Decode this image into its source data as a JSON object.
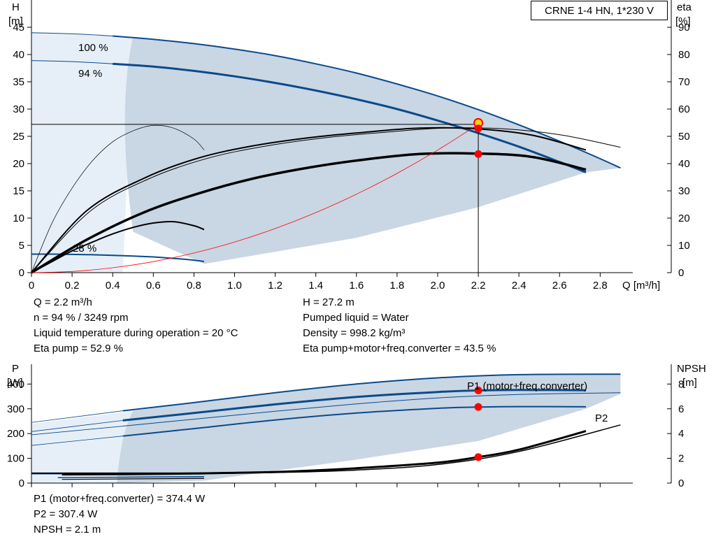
{
  "title": "CRNE 1-4 HN, 1*230 V",
  "colors": {
    "blue": "#0a4a8a",
    "shade": "#c9d6e4",
    "light": "#e6eff8",
    "red": "#ff0000"
  },
  "info_top": {
    "left": [
      "Q = 2.2 m³/h",
      "n = 94 % / 3249 rpm",
      "Liquid temperature during operation = 20 °C",
      "Eta pump = 52.9 %"
    ],
    "right": [
      "H = 27.2 m",
      "Pumped liquid = Water",
      "Density = 998.2 kg/m³",
      "Eta pump+motor+freq.converter = 43.5 %"
    ]
  },
  "info_bottom": [
    "P1 (motor+freq.converter) = 374.4 W",
    "P2 = 307.4 W",
    "NPSH = 2.1 m"
  ],
  "chart_data": [
    {
      "type": "line",
      "title": "CRNE 1-4 HN, 1*230 V",
      "x_label": "Q [m³/h]",
      "y_left_label": [
        "H",
        "[m]"
      ],
      "y_right_label": [
        "eta",
        "[%]"
      ],
      "x_ticks": [
        "0",
        "0.2",
        "0.4",
        "0.6",
        "0.8",
        "1.0",
        "1.2",
        "1.4",
        "1.6",
        "1.8",
        "2.0",
        "2.2",
        "2.4",
        "2.6",
        "2.8"
      ],
      "y_left_ticks": [
        "0",
        "5",
        "10",
        "15",
        "20",
        "25",
        "30",
        "35",
        "40",
        "45"
      ],
      "y_right_ticks": [
        "0",
        "10",
        "20",
        "30",
        "40",
        "50",
        "60",
        "70",
        "80",
        "90"
      ],
      "xlim": [
        0,
        3.15
      ],
      "ylim_left": [
        0,
        50
      ],
      "ylim_right": [
        0,
        100
      ],
      "annotations": [
        "100 %",
        "94 %",
        "28 %"
      ],
      "duty_point": {
        "Q": 2.2,
        "H": 27.2,
        "eta": 52.9,
        "eta_total": 43.5
      },
      "series": [
        {
          "name": "100 %",
          "role": "H",
          "speed": 1.0,
          "x": [
            0,
            0.2,
            0.4,
            0.6,
            0.8,
            1.0,
            1.2,
            1.4,
            1.6,
            1.8,
            2.0,
            2.2,
            2.4,
            2.6,
            2.8,
            2.9
          ],
          "y": [
            44,
            43.8,
            43.4,
            42.8,
            42,
            41,
            39.8,
            38.3,
            36.6,
            34.6,
            32.4,
            29.9,
            27.1,
            24.1,
            20.9,
            19.2
          ]
        },
        {
          "name": "94 %",
          "role": "H",
          "speed": 0.94,
          "x": [
            0,
            0.2,
            0.4,
            0.6,
            0.8,
            1.0,
            1.2,
            1.4,
            1.6,
            1.8,
            2.0,
            2.2,
            2.4,
            2.6,
            2.73
          ],
          "y": [
            38.9,
            38.7,
            38.3,
            37.8,
            37,
            36,
            34.8,
            33.4,
            31.8,
            30,
            27.9,
            25.6,
            23.1,
            20.3,
            18.4
          ]
        },
        {
          "name": "28 %",
          "role": "H",
          "speed": 0.28,
          "x": [
            0,
            0.1,
            0.2,
            0.3,
            0.4,
            0.5,
            0.6,
            0.7,
            0.8,
            0.85
          ],
          "y": [
            3.4,
            3.4,
            3.35,
            3.28,
            3.18,
            3.05,
            2.88,
            2.62,
            2.28,
            2.05
          ]
        },
        {
          "name": "system curve",
          "role": "system",
          "x": [
            0,
            0.2,
            0.4,
            0.6,
            0.8,
            1.0,
            1.2,
            1.4,
            1.6,
            1.8,
            2.0,
            2.2
          ],
          "y": [
            0,
            0.22,
            0.9,
            2.02,
            3.6,
            5.62,
            8.09,
            11.01,
            14.38,
            18.2,
            22.48,
            27.2
          ]
        },
        {
          "name": "eta 100 %",
          "role": "eta",
          "x": [
            0,
            0.29,
            0.58,
            0.87,
            1.16,
            1.45,
            1.74,
            2.03,
            2.32,
            2.61,
            2.9
          ],
          "y": [
            0,
            22.6,
            34.5,
            42,
            46.5,
            49.5,
            51.5,
            53,
            52.8,
            50.5,
            46
          ]
        },
        {
          "name": "eta 94 %",
          "role": "eta",
          "x": [
            0,
            0.27,
            0.55,
            0.82,
            1.09,
            1.37,
            1.64,
            1.91,
            2.18,
            2.46,
            2.73
          ],
          "y": [
            0,
            22.6,
            34.5,
            42,
            46.5,
            49.5,
            51.5,
            53,
            52.8,
            50.5,
            45
          ]
        },
        {
          "name": "eta pump+motor+freq.converter",
          "role": "eta",
          "x": [
            0,
            0.27,
            0.55,
            0.82,
            1.09,
            1.37,
            1.64,
            1.91,
            2.18,
            2.46,
            2.73
          ],
          "y": [
            0,
            12,
            22,
            29,
            34.5,
            38.6,
            41.5,
            43.5,
            43.7,
            42.5,
            37.8
          ]
        },
        {
          "name": "eta 28 %",
          "role": "eta",
          "x": [
            0,
            0.1,
            0.2,
            0.3,
            0.4,
            0.5,
            0.6,
            0.7,
            0.8,
            0.85
          ],
          "y": [
            0,
            4,
            8,
            11.2,
            14.2,
            16.6,
            18.2,
            18.7,
            17.2,
            15.8
          ]
        },
        {
          "name": "eta pump 28 % (thin)",
          "role": "eta",
          "x": [
            0,
            0.1,
            0.2,
            0.3,
            0.4,
            0.5,
            0.6,
            0.7,
            0.8,
            0.85
          ],
          "y": [
            0,
            18,
            31,
            41,
            48,
            52,
            54,
            53,
            49,
            45
          ]
        }
      ],
      "duty_markers": [
        {
          "Q": 2.2,
          "value": 27.2,
          "axis": "H"
        },
        {
          "Q": 2.2,
          "value": 52.9,
          "axis": "eta"
        },
        {
          "Q": 2.2,
          "value": 43.5,
          "axis": "eta"
        }
      ]
    },
    {
      "type": "line",
      "y_left_label": [
        "P",
        "[W]"
      ],
      "y_right_label": [
        "NPSH",
        "[m]"
      ],
      "y_left_ticks": [
        "0",
        "100",
        "200",
        "300",
        "400"
      ],
      "y_right_ticks": [
        "0",
        "2",
        "4",
        "6",
        "8"
      ],
      "xlim": [
        0,
        3.15
      ],
      "ylim_left": [
        0,
        480
      ],
      "ylim_right": [
        0,
        9.6
      ],
      "series_labels": [
        "P1 (motor+freq.converter)",
        "P2"
      ],
      "series": [
        {
          "name": "P1 (motor+freq.converter)",
          "role": "P",
          "x": [
            0.45,
            0.8,
            1.2,
            1.6,
            2.0,
            2.4,
            2.9
          ],
          "y": [
            292,
            325,
            365,
            400,
            425,
            438,
            440
          ]
        },
        {
          "name": "P1 94 %",
          "role": "P",
          "x": [
            0.45,
            0.8,
            1.2,
            1.6,
            2.0,
            2.2,
            2.4,
            2.73
          ],
          "y": [
            253,
            283,
            318,
            348,
            368,
            374,
            376,
            375
          ]
        },
        {
          "name": "P2",
          "role": "P",
          "x": [
            0.45,
            0.8,
            1.2,
            1.6,
            2.0,
            2.4,
            2.9
          ],
          "y": [
            230,
            258,
            290,
            320,
            344,
            358,
            365
          ]
        },
        {
          "name": "P2 94 %",
          "role": "P",
          "x": [
            0.45,
            0.8,
            1.2,
            1.6,
            2.0,
            2.2,
            2.4,
            2.73
          ],
          "y": [
            190,
            220,
            255,
            283,
            302,
            307,
            309,
            308
          ]
        },
        {
          "name": "NPSH",
          "role": "NPSH",
          "x": [
            0.15,
            0.45,
            0.8,
            1.2,
            1.6,
            2.0,
            2.2,
            2.4,
            2.73
          ],
          "y": [
            0.7,
            0.72,
            0.78,
            0.9,
            1.2,
            1.65,
            2.1,
            2.7,
            4.2
          ]
        },
        {
          "name": "NPSH 100 %",
          "role": "NPSH",
          "x": [
            0.45,
            0.8,
            1.2,
            1.6,
            2.0,
            2.4,
            2.9
          ],
          "y": [
            0.72,
            0.76,
            0.85,
            1.05,
            1.5,
            2.55,
            4.7
          ]
        }
      ],
      "duty_markers": [
        {
          "Q": 2.2,
          "value": 374.4,
          "axis": "P"
        },
        {
          "Q": 2.2,
          "value": 307.4,
          "axis": "P"
        },
        {
          "Q": 2.2,
          "value": 2.1,
          "axis": "NPSH"
        }
      ]
    }
  ]
}
